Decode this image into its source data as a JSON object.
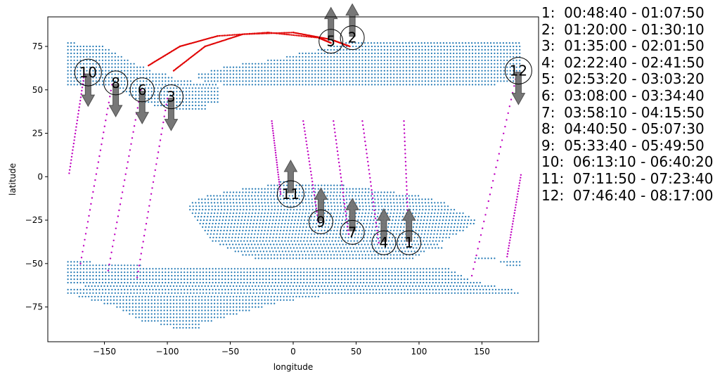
{
  "chart_data": {
    "type": "scatter",
    "xlabel": "longitude",
    "ylabel": "latitude",
    "xlim": [
      -195,
      195
    ],
    "ylim": [
      -95,
      92
    ],
    "xticks": [
      -150,
      -100,
      -50,
      0,
      50,
      100,
      150
    ],
    "yticks": [
      -75,
      -50,
      -25,
      0,
      25,
      50,
      75
    ],
    "colors": {
      "grid_points": "#1f77b4",
      "track": "#c000c0",
      "polar_track": "#e00000",
      "arrow": "#707070"
    },
    "grid_regions": [
      {
        "name": "north",
        "rows": [
          [
            77,
            -179,
            -172
          ],
          [
            75,
            -179,
            -150
          ],
          [
            73,
            -179,
            -145
          ],
          [
            71,
            -179,
            -140
          ],
          [
            69,
            -179,
            -135
          ],
          [
            67,
            -179,
            -130
          ],
          [
            65,
            -179,
            -125
          ],
          [
            63,
            -179,
            -118
          ],
          [
            61,
            -179,
            -112
          ],
          [
            59,
            -179,
            -100
          ],
          [
            57,
            -179,
            -95
          ],
          [
            55,
            -179,
            -80
          ],
          [
            53,
            -179,
            -60
          ],
          [
            51,
            -140,
            -60
          ],
          [
            49,
            -135,
            -60
          ],
          [
            47,
            -130,
            -60
          ],
          [
            45,
            -125,
            -60
          ],
          [
            43,
            -120,
            -60
          ],
          [
            41,
            -110,
            -70
          ],
          [
            39,
            -95,
            -70
          ],
          [
            77,
            42,
            180
          ],
          [
            75,
            30,
            180
          ],
          [
            73,
            20,
            180
          ],
          [
            71,
            5,
            180
          ],
          [
            69,
            -5,
            180
          ],
          [
            67,
            -20,
            180
          ],
          [
            65,
            -40,
            180
          ],
          [
            63,
            -55,
            180
          ],
          [
            61,
            -65,
            180
          ],
          [
            59,
            -75,
            180
          ],
          [
            57,
            -75,
            180
          ],
          [
            55,
            -70,
            180
          ],
          [
            53,
            -55,
            160
          ]
        ]
      },
      {
        "name": "south",
        "rows": [
          [
            -3,
            -10,
            0
          ],
          [
            -5,
            -20,
            40
          ],
          [
            -7,
            -40,
            60
          ],
          [
            -9,
            -55,
            80
          ],
          [
            -11,
            -68,
            100
          ],
          [
            -13,
            -75,
            110
          ],
          [
            -15,
            -80,
            120
          ],
          [
            -17,
            -82,
            125
          ],
          [
            -19,
            -82,
            130
          ],
          [
            -21,
            -80,
            135
          ],
          [
            -23,
            -78,
            140
          ],
          [
            -25,
            -76,
            145
          ],
          [
            -27,
            -74,
            145
          ],
          [
            -29,
            -72,
            140
          ],
          [
            -31,
            -70,
            135
          ],
          [
            -33,
            -68,
            130
          ],
          [
            -35,
            -66,
            125
          ],
          [
            -37,
            -64,
            120
          ],
          [
            -39,
            -58,
            115
          ],
          [
            -41,
            -52,
            120
          ],
          [
            -43,
            -46,
            105
          ],
          [
            -45,
            -40,
            100
          ],
          [
            -47,
            -30,
            95
          ],
          [
            -49,
            -179,
            -160
          ],
          [
            -51,
            -179,
            -120
          ],
          [
            -53,
            -179,
            125
          ],
          [
            -55,
            -179,
            130
          ],
          [
            -57,
            -179,
            135
          ],
          [
            -59,
            -179,
            140
          ],
          [
            -61,
            -179,
            150
          ],
          [
            -63,
            -165,
            160
          ],
          [
            -65,
            -179,
            175
          ],
          [
            -67,
            -179,
            180
          ],
          [
            -69,
            -170,
            20
          ],
          [
            -71,
            -160,
            0
          ],
          [
            -73,
            -150,
            -15
          ],
          [
            -75,
            -140,
            -25
          ],
          [
            -77,
            -135,
            -35
          ],
          [
            -79,
            -130,
            -45
          ],
          [
            -81,
            -125,
            -55
          ],
          [
            -83,
            -120,
            -65
          ],
          [
            -85,
            -105,
            -75
          ],
          [
            -87,
            -95,
            -75
          ],
          [
            -47,
            145,
            160
          ],
          [
            -49,
            165,
            180
          ],
          [
            -51,
            170,
            180
          ]
        ]
      }
    ],
    "tracks": [
      {
        "label": "1",
        "color": "#c000c0",
        "points": [
          [
            88,
            32
          ],
          [
            92,
            -38
          ]
        ]
      },
      {
        "label": "2",
        "color": "#e00000",
        "points": [
          [
            -95,
            61
          ],
          [
            -70,
            75
          ],
          [
            -40,
            82
          ],
          [
            0,
            83
          ],
          [
            30,
            79
          ],
          [
            45,
            75
          ]
        ]
      },
      {
        "label": "3",
        "color": "#c000c0",
        "points": [
          [
            -100,
            45
          ],
          [
            -124,
            -58
          ]
        ]
      },
      {
        "label": "4",
        "color": "#c000c0",
        "points": [
          [
            55,
            32
          ],
          [
            68,
            -38
          ]
        ]
      },
      {
        "label": "5",
        "color": "#e00000",
        "points": [
          [
            -115,
            64
          ],
          [
            -90,
            75
          ],
          [
            -60,
            81
          ],
          [
            -20,
            83
          ],
          [
            20,
            80
          ],
          [
            30,
            77
          ]
        ]
      },
      {
        "label": "6",
        "color": "#c000c0",
        "points": [
          [
            -121,
            50
          ],
          [
            -147,
            -54
          ]
        ]
      },
      {
        "label": "7",
        "color": "#c000c0",
        "points": [
          [
            32,
            32
          ],
          [
            44,
            -33
          ]
        ]
      },
      {
        "label": "8",
        "color": "#c000c0",
        "points": [
          [
            -144,
            53
          ],
          [
            -169,
            -50
          ]
        ]
      },
      {
        "label": "9",
        "color": "#c000c0",
        "points": [
          [
            8,
            32
          ],
          [
            20,
            -26
          ]
        ]
      },
      {
        "label": "10",
        "color": "#c000c0",
        "points": [
          [
            -166,
            59
          ],
          [
            -178,
            2
          ]
        ]
      },
      {
        "label": "11",
        "color": "#c000c0",
        "points": [
          [
            -17,
            32
          ],
          [
            -10,
            -10
          ]
        ]
      },
      {
        "label": "12",
        "color": "#c000c0",
        "points": [
          [
            178,
            60
          ],
          [
            142,
            -57
          ]
        ]
      }
    ],
    "track_extra": [
      {
        "color": "#c000c0",
        "points": [
          [
            181,
            1
          ],
          [
            170,
            -46
          ]
        ]
      }
    ],
    "annotations": [
      {
        "label": "1",
        "x": 92,
        "y": -38,
        "arrow": "up"
      },
      {
        "label": "2",
        "x": 47,
        "y": 80,
        "arrow": "up"
      },
      {
        "label": "3",
        "x": -97,
        "y": 46,
        "arrow": "down"
      },
      {
        "label": "4",
        "x": 72,
        "y": -38,
        "arrow": "up"
      },
      {
        "label": "5",
        "x": 30,
        "y": 78,
        "arrow": "up"
      },
      {
        "label": "6",
        "x": -120,
        "y": 50,
        "arrow": "down"
      },
      {
        "label": "7",
        "x": 47,
        "y": -32,
        "arrow": "up"
      },
      {
        "label": "8",
        "x": -141,
        "y": 54,
        "arrow": "down"
      },
      {
        "label": "9",
        "x": 22,
        "y": -26,
        "arrow": "up"
      },
      {
        "label": "10",
        "x": -163,
        "y": 60,
        "arrow": "down"
      },
      {
        "label": "11",
        "x": -2,
        "y": -10,
        "arrow": "up"
      },
      {
        "label": "12",
        "x": 179,
        "y": 61,
        "arrow": "down"
      }
    ]
  },
  "legend": [
    "1:  00:48:40 - 01:07:50",
    "2:  01:20:00 - 01:30:10",
    "3:  01:35:00 - 02:01:50",
    "4:  02:22:40 - 02:41:50",
    "5:  02:53:20 - 03:03:20",
    "6:  03:08:00 - 03:34:40",
    "7:  03:58:10 - 04:15:50",
    "8:  04:40:50 - 05:07:30",
    "9:  05:33:40 - 05:49:50",
    "10:  06:13:10 - 06:40:20",
    "11:  07:11:50 - 07:23:40",
    "12:  07:46:40 - 08:17:00"
  ]
}
